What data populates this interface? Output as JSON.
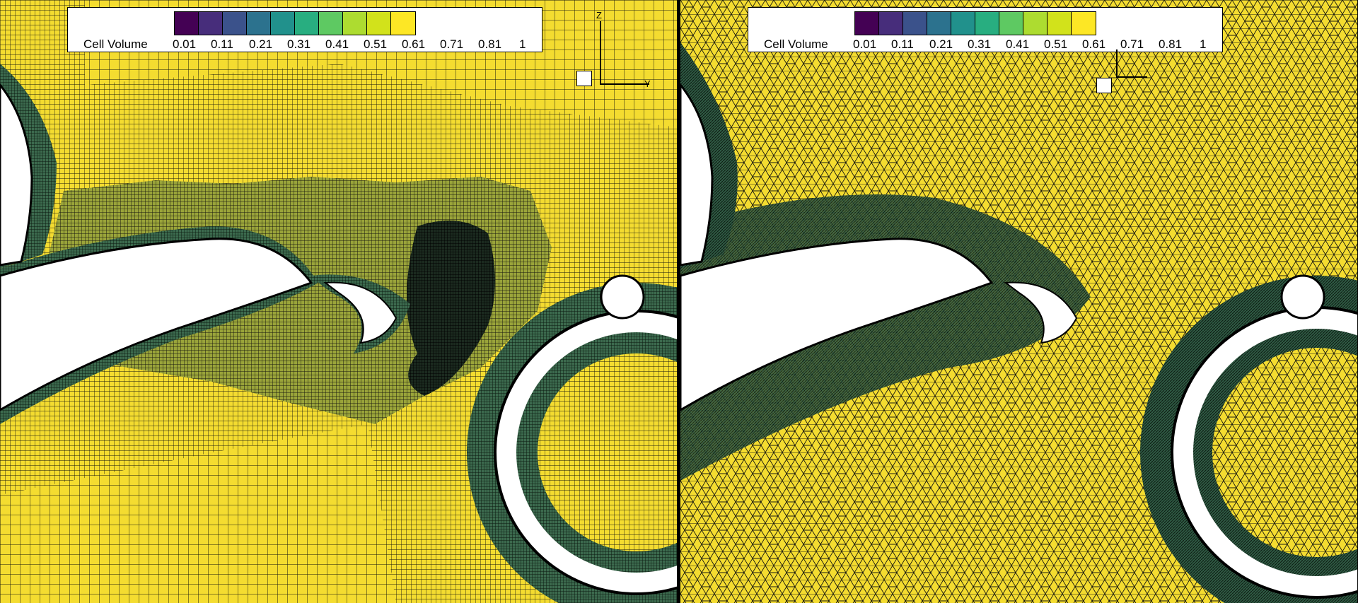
{
  "colorbar": {
    "title": "Cell Volume",
    "ticks": [
      "0.01",
      "0.11",
      "0.21",
      "0.31",
      "0.41",
      "0.51",
      "0.61",
      "0.71",
      "0.81",
      "1"
    ],
    "colors": [
      "#440154",
      "#472d7b",
      "#3b528b",
      "#2c728e",
      "#21918c",
      "#28ae80",
      "#5ec962",
      "#addc30",
      "#d2e21b",
      "#fde725"
    ]
  },
  "axes": {
    "vertical": "Z",
    "horizontal": "Y"
  }
}
